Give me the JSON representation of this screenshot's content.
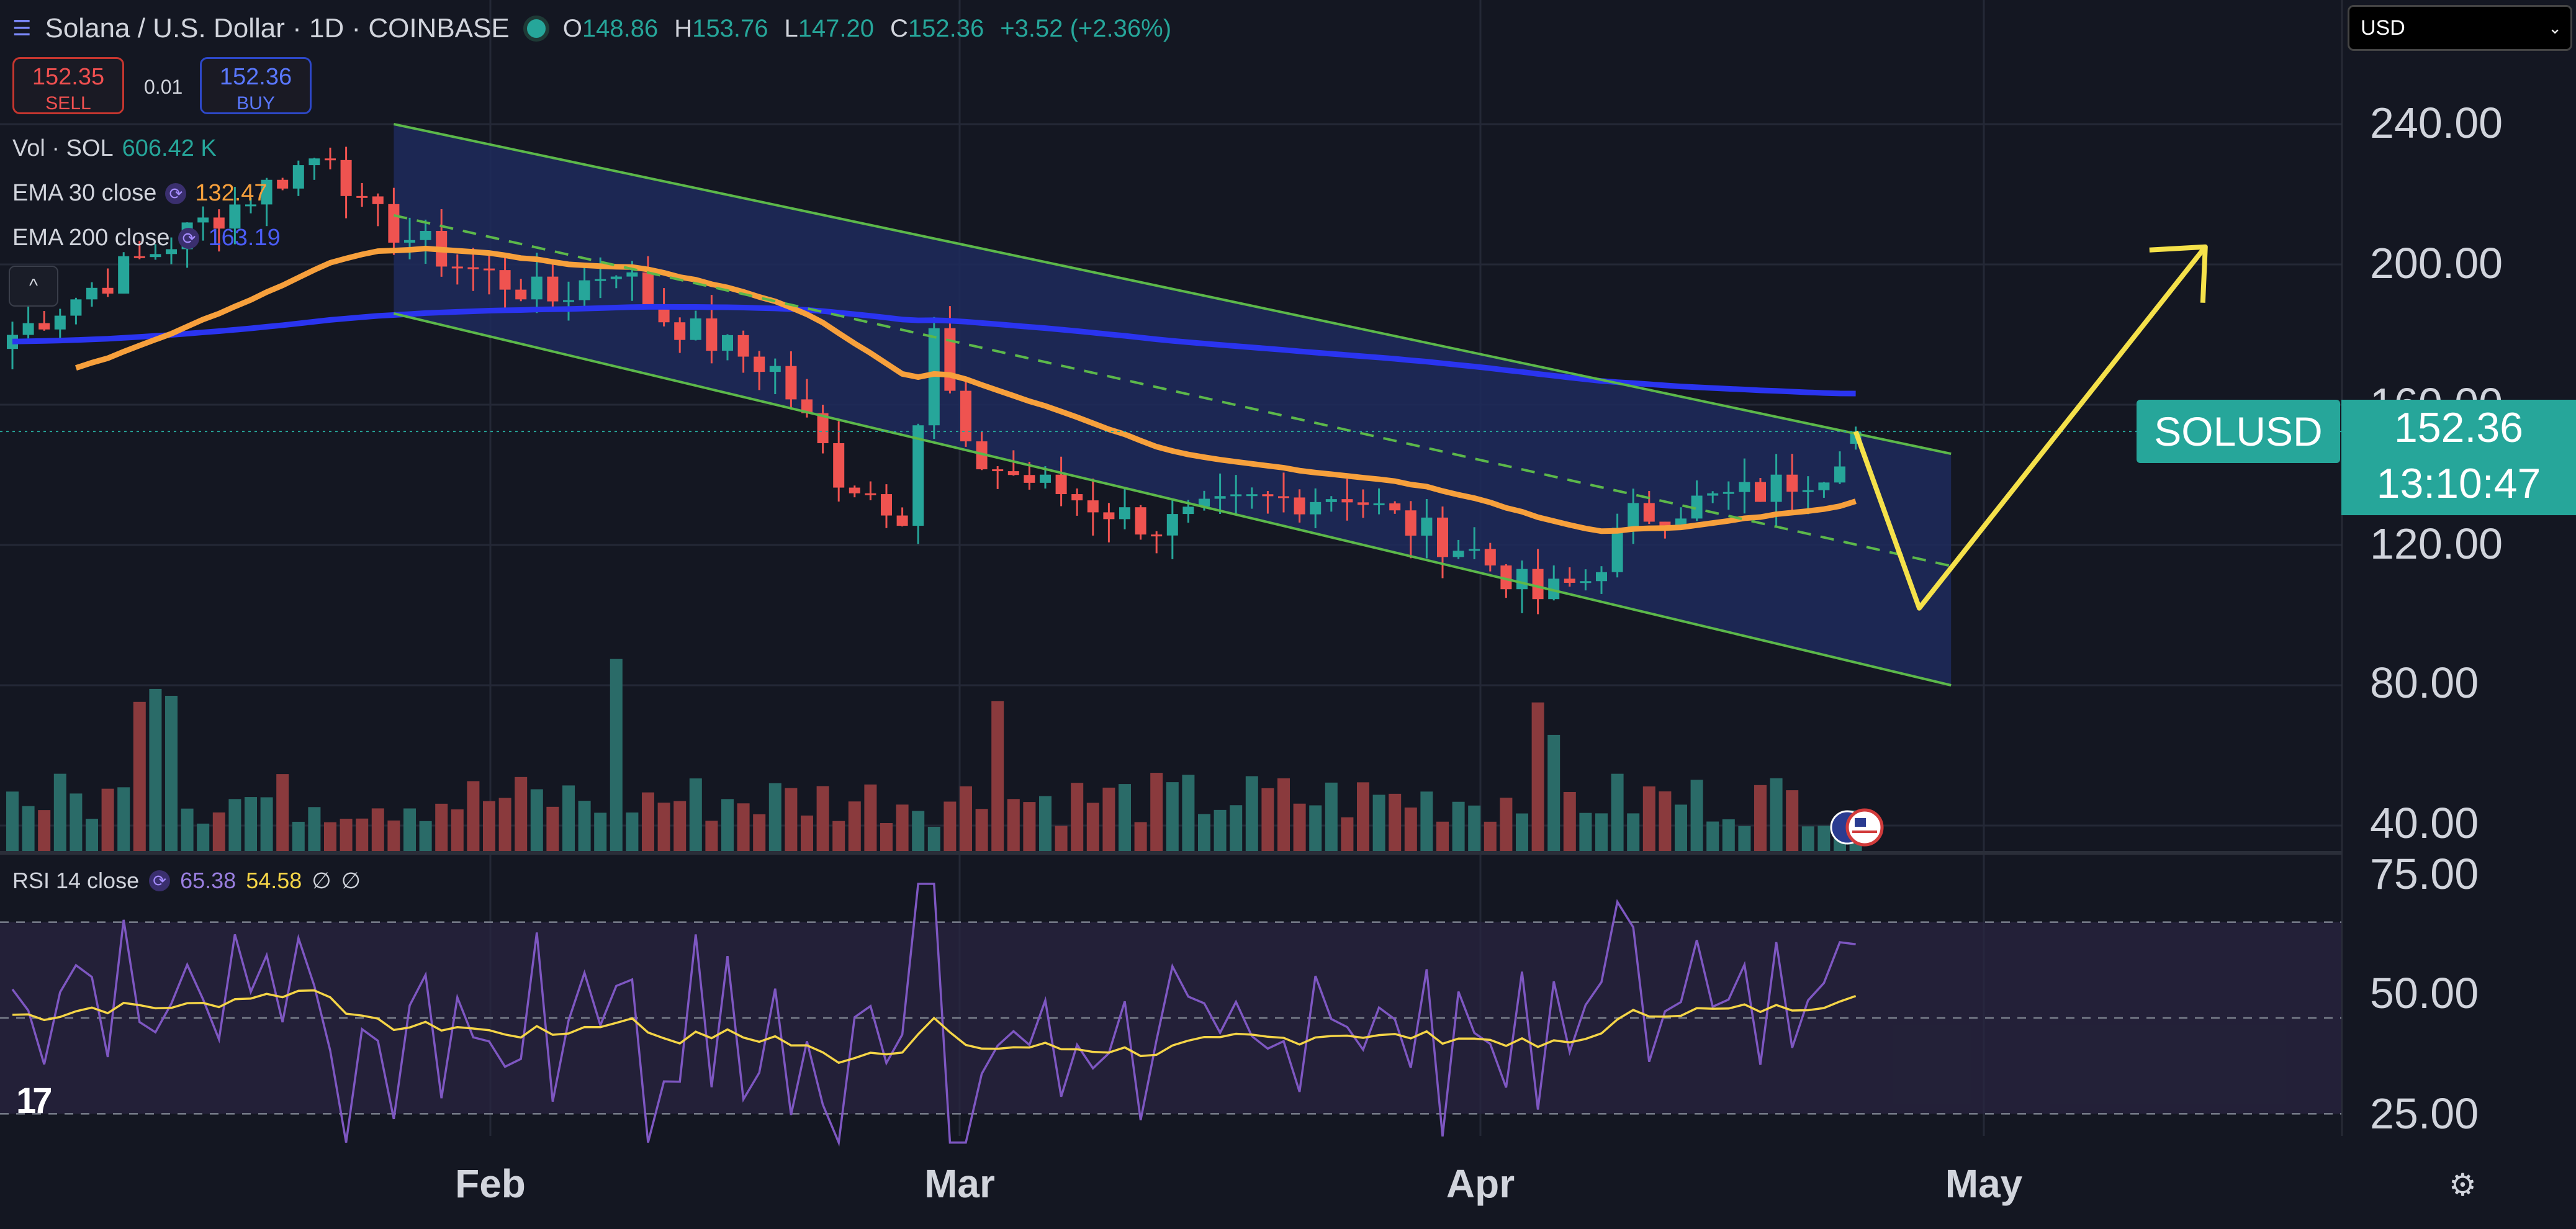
{
  "header": {
    "menu_icon": "list-icon",
    "title": "Solana / U.S. Dollar · 1D · COINBASE",
    "ohlc": {
      "o_label": "O",
      "o_value": "148.86",
      "h_label": "H",
      "h_value": "153.76",
      "l_label": "L",
      "l_value": "147.20",
      "c_label": "C",
      "c_value": "152.36",
      "change": "+3.52 (+2.36%)"
    }
  },
  "trade": {
    "sell_price": "152.35",
    "sell_label": "SELL",
    "spread": "0.01",
    "buy_price": "152.36",
    "buy_label": "BUY"
  },
  "indicators": {
    "vol": {
      "label": "Vol · SOL",
      "value": "606.42 K"
    },
    "ema30": {
      "label": "EMA 30 close",
      "value": "132.47"
    },
    "ema200": {
      "label": "EMA 200 close",
      "value": "163.19"
    },
    "collapse": "^"
  },
  "currency": {
    "selected": "USD",
    "chevron": "⌄"
  },
  "price_axis": [
    "240.00",
    "200.00",
    "160.00",
    "120.00",
    "80.00",
    "40.00"
  ],
  "rsi_axis": [
    "75.00",
    "50.00",
    "25.00"
  ],
  "time_axis": [
    "Feb",
    "Mar",
    "Apr",
    "May"
  ],
  "last_price": {
    "symbol": "SOLUSD",
    "price": "152.36",
    "countdown": "13:10:47"
  },
  "rsi": {
    "label": "RSI 14 close",
    "value": "65.38",
    "ma_value": "54.58",
    "extra1": "∅",
    "extra2": "∅"
  },
  "brand": {
    "logo": "17"
  },
  "colors": {
    "background": "#141722",
    "up": "#26a69a",
    "down": "#ef5350",
    "ema30": "#f7a03c",
    "ema200": "#2a34f0",
    "channel": "#5cb84a",
    "forecast": "#f5e14a",
    "rsi": "#7e57c2",
    "rsi_ma": "#f5d547"
  },
  "chart_data": {
    "type": "candlestick",
    "symbol": "SOLUSD",
    "price_range": [
      20,
      272
    ],
    "x_ticks": [
      "Feb",
      "Mar",
      "Apr",
      "May"
    ],
    "anchors": [
      {
        "x": 0,
        "y": 180
      },
      {
        "x": 20,
        "y": 233
      },
      {
        "x": 22,
        "y": 215
      },
      {
        "x": 28,
        "y": 200
      },
      {
        "x": 34,
        "y": 190
      },
      {
        "x": 38,
        "y": 200
      },
      {
        "x": 41,
        "y": 185
      },
      {
        "x": 44,
        "y": 178
      },
      {
        "x": 48,
        "y": 170
      },
      {
        "x": 52,
        "y": 140
      },
      {
        "x": 56,
        "y": 130
      },
      {
        "x": 58,
        "y": 180
      },
      {
        "x": 60,
        "y": 145
      },
      {
        "x": 66,
        "y": 135
      },
      {
        "x": 72,
        "y": 125
      },
      {
        "x": 78,
        "y": 132
      },
      {
        "x": 84,
        "y": 135
      },
      {
        "x": 88,
        "y": 125
      },
      {
        "x": 92,
        "y": 118
      },
      {
        "x": 96,
        "y": 105
      },
      {
        "x": 99,
        "y": 110
      },
      {
        "x": 102,
        "y": 128
      },
      {
        "x": 106,
        "y": 132
      },
      {
        "x": 110,
        "y": 135
      },
      {
        "x": 114,
        "y": 142
      },
      {
        "x": 116,
        "y": 152.36
      }
    ],
    "last": {
      "open": 148.86,
      "high": 153.76,
      "low": 147.2,
      "close": 152.36
    },
    "ema30_last": 132.47,
    "ema200_last": 163.19,
    "volume_last": "606.42 K",
    "channel": {
      "upper": [
        [
          24,
          240
        ],
        [
          122,
          146
        ]
      ],
      "mid": [
        [
          24,
          214
        ],
        [
          122,
          114
        ]
      ],
      "lower": [
        [
          24,
          186
        ],
        [
          122,
          80
        ]
      ]
    },
    "forecast": [
      [
        116,
        152.36
      ],
      [
        120,
        102
      ],
      [
        138,
        205
      ]
    ],
    "rsi_range": [
      20,
      80
    ],
    "rsi_levels": [
      70,
      50,
      30
    ],
    "rsi_last": 65.38,
    "rsi_ma_last": 54.58
  }
}
